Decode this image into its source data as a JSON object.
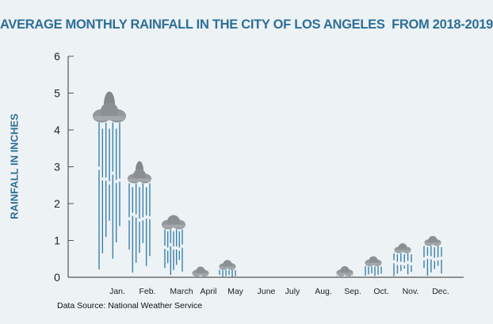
{
  "title": "AVERAGE MONTHLY RAINFALL IN THE CITY OF LOS ANGELES  FROM 2018-2019",
  "ylabel": "RAINFALL IN INCHES",
  "source": "Data Source: National Weather Service",
  "colors": {
    "title": "#2d6f97",
    "rain": "#3b7fab",
    "cloud": "#8a8f93",
    "axis": "#555555",
    "background": "#edf2f5"
  },
  "chart_data": {
    "type": "bar",
    "title": "AVERAGE MONTHLY RAINFALL IN THE CITY OF LOS ANGELES  FROM 2018-2019",
    "ylabel": "RAINFALL IN INCHES",
    "xlabel": "",
    "ylim": [
      0,
      6
    ],
    "yticks": [
      0,
      1,
      2,
      3,
      4,
      5,
      6
    ],
    "grid": false,
    "categories": [
      "Jan.",
      "Feb.",
      "March",
      "April",
      "May",
      "June",
      "July",
      "Aug.",
      "Sep.",
      "Oct.",
      "Nov.",
      "Dec."
    ],
    "values": [
      4.2,
      2.55,
      1.3,
      0.02,
      0.2,
      0,
      0,
      0,
      0.03,
      0.3,
      0.65,
      0.85
    ]
  }
}
